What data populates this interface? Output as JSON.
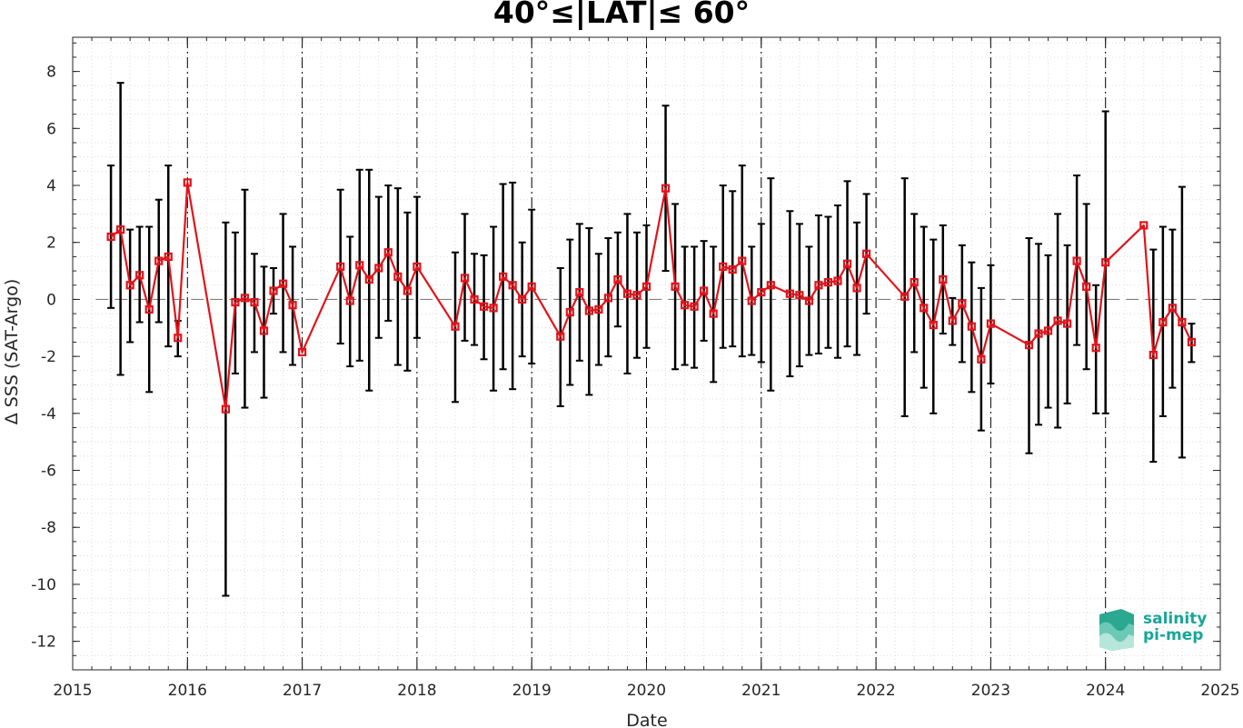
{
  "chart_data": {
    "type": "line",
    "title": "40°≤|LAT|≤ 60°",
    "xlabel": "Date",
    "ylabel": "Δ SSS (SAT-Argo)",
    "xlim": [
      2015,
      2025
    ],
    "ylim": [
      -13,
      9.2
    ],
    "x_ticks": [
      2015,
      2016,
      2017,
      2018,
      2019,
      2020,
      2021,
      2022,
      2023,
      2024,
      2025
    ],
    "x_tick_labels": [
      "2015",
      "2016",
      "2017",
      "2018",
      "2019",
      "2020",
      "2021",
      "2022",
      "2023",
      "2024",
      "2025"
    ],
    "y_ticks": [
      -12,
      -10,
      -8,
      -6,
      -4,
      -2,
      0,
      2,
      4,
      6,
      8
    ],
    "y_tick_labels": [
      "-12",
      "-10",
      "-8",
      "-6",
      "-4",
      "-2",
      "0",
      "2",
      "4",
      "6",
      "8"
    ],
    "grid": "minor dotted",
    "year_lines": [
      2016,
      2017,
      2018,
      2019,
      2020,
      2021,
      2022,
      2023,
      2024
    ],
    "zero_line": 0,
    "colors": {
      "series": "#e0141b",
      "errorbar": "#000000",
      "zero_line": "#7f7f7f"
    },
    "series": [
      {
        "points": [
          {
            "x": "2015-05",
            "y": 2.2,
            "lo": -0.3,
            "hi": 4.7
          },
          {
            "x": "2015-06",
            "y": 2.45,
            "lo": -2.65,
            "hi": 7.6
          },
          {
            "x": "2015-07",
            "y": 0.5,
            "lo": -1.5,
            "hi": 2.45
          },
          {
            "x": "2015-08",
            "y": 0.85,
            "lo": -0.8,
            "hi": 2.55
          },
          {
            "x": "2015-09",
            "y": -0.35,
            "lo": -3.25,
            "hi": 2.55
          },
          {
            "x": "2015-10",
            "y": 1.35,
            "lo": -0.8,
            "hi": 3.5
          },
          {
            "x": "2015-11",
            "y": 1.5,
            "lo": -1.65,
            "hi": 4.7
          },
          {
            "x": "2015-12",
            "y": -1.35,
            "lo": -2.0,
            "hi": -0.75
          },
          {
            "x": "2016-01",
            "y": 4.1,
            "lo": 4.1,
            "hi": 4.1
          },
          {
            "x": "2016-05",
            "y": -3.85,
            "lo": -10.4,
            "hi": 2.7
          },
          {
            "x": "2016-06",
            "y": -0.1,
            "lo": -2.6,
            "hi": 2.35
          },
          {
            "x": "2016-07",
            "y": 0.05,
            "lo": -3.8,
            "hi": 3.85
          },
          {
            "x": "2016-08",
            "y": -0.1,
            "lo": -1.85,
            "hi": 1.6
          },
          {
            "x": "2016-09",
            "y": -1.1,
            "lo": -3.45,
            "hi": 1.15
          },
          {
            "x": "2016-10",
            "y": 0.3,
            "lo": -0.5,
            "hi": 1.1
          },
          {
            "x": "2016-11",
            "y": 0.55,
            "lo": -1.85,
            "hi": 3.0
          },
          {
            "x": "2016-12",
            "y": -0.2,
            "lo": -2.3,
            "hi": 1.85
          },
          {
            "x": "2017-01",
            "y": -1.85,
            "lo": -1.85,
            "hi": -1.85
          },
          {
            "x": "2017-05",
            "y": 1.15,
            "lo": -1.55,
            "hi": 3.85
          },
          {
            "x": "2017-06",
            "y": -0.05,
            "lo": -2.35,
            "hi": 2.2
          },
          {
            "x": "2017-07",
            "y": 1.2,
            "lo": -2.15,
            "hi": 4.55
          },
          {
            "x": "2017-08",
            "y": 0.7,
            "lo": -3.2,
            "hi": 4.55
          },
          {
            "x": "2017-09",
            "y": 1.1,
            "lo": -1.35,
            "hi": 3.6
          },
          {
            "x": "2017-10",
            "y": 1.65,
            "lo": -0.75,
            "hi": 4.0
          },
          {
            "x": "2017-11",
            "y": 0.8,
            "lo": -2.3,
            "hi": 3.9
          },
          {
            "x": "2017-12",
            "y": 0.3,
            "lo": -2.5,
            "hi": 3.05
          },
          {
            "x": "2018-01",
            "y": 1.15,
            "lo": -1.35,
            "hi": 3.6
          },
          {
            "x": "2018-05",
            "y": -0.95,
            "lo": -3.6,
            "hi": 1.65
          },
          {
            "x": "2018-06",
            "y": 0.75,
            "lo": -1.45,
            "hi": 3.0
          },
          {
            "x": "2018-07",
            "y": 0.0,
            "lo": -1.6,
            "hi": 1.6
          },
          {
            "x": "2018-08",
            "y": -0.25,
            "lo": -2.1,
            "hi": 1.55
          },
          {
            "x": "2018-09",
            "y": -0.3,
            "lo": -3.2,
            "hi": 2.55
          },
          {
            "x": "2018-10",
            "y": 0.8,
            "lo": -2.45,
            "hi": 4.05
          },
          {
            "x": "2018-11",
            "y": 0.5,
            "lo": -3.15,
            "hi": 4.1
          },
          {
            "x": "2018-12",
            "y": 0.0,
            "lo": -2.0,
            "hi": 2.0
          },
          {
            "x": "2019-01",
            "y": 0.45,
            "lo": -2.25,
            "hi": 3.15
          },
          {
            "x": "2019-04",
            "y": -1.3,
            "lo": -3.75,
            "hi": 1.1
          },
          {
            "x": "2019-05",
            "y": -0.45,
            "lo": -3.0,
            "hi": 2.1
          },
          {
            "x": "2019-06",
            "y": 0.25,
            "lo": -2.15,
            "hi": 2.65
          },
          {
            "x": "2019-07",
            "y": -0.4,
            "lo": -3.35,
            "hi": 2.5
          },
          {
            "x": "2019-08",
            "y": -0.35,
            "lo": -2.3,
            "hi": 1.6
          },
          {
            "x": "2019-09",
            "y": 0.05,
            "lo": -2.0,
            "hi": 2.15
          },
          {
            "x": "2019-10",
            "y": 0.7,
            "lo": -0.95,
            "hi": 2.35
          },
          {
            "x": "2019-11",
            "y": 0.2,
            "lo": -2.6,
            "hi": 3.0
          },
          {
            "x": "2019-12",
            "y": 0.15,
            "lo": -2.05,
            "hi": 2.35
          },
          {
            "x": "2020-01",
            "y": 0.45,
            "lo": -1.7,
            "hi": 2.6
          },
          {
            "x": "2020-03",
            "y": 3.9,
            "lo": 1.0,
            "hi": 6.8
          },
          {
            "x": "2020-04",
            "y": 0.45,
            "lo": -2.45,
            "hi": 3.35
          },
          {
            "x": "2020-05",
            "y": -0.2,
            "lo": -2.3,
            "hi": 1.85
          },
          {
            "x": "2020-06",
            "y": -0.25,
            "lo": -2.4,
            "hi": 1.85
          },
          {
            "x": "2020-07",
            "y": 0.3,
            "lo": -1.45,
            "hi": 2.05
          },
          {
            "x": "2020-08",
            "y": -0.5,
            "lo": -2.9,
            "hi": 1.85
          },
          {
            "x": "2020-09",
            "y": 1.15,
            "lo": -1.7,
            "hi": 4.0
          },
          {
            "x": "2020-10",
            "y": 1.05,
            "lo": -1.65,
            "hi": 3.8
          },
          {
            "x": "2020-11",
            "y": 1.35,
            "lo": -2.0,
            "hi": 4.7
          },
          {
            "x": "2020-12",
            "y": -0.05,
            "lo": -1.95,
            "hi": 1.85
          },
          {
            "x": "2021-01",
            "y": 0.25,
            "lo": -2.2,
            "hi": 2.65
          },
          {
            "x": "2021-02",
            "y": 0.5,
            "lo": -3.2,
            "hi": 4.25
          },
          {
            "x": "2021-04",
            "y": 0.2,
            "lo": -2.7,
            "hi": 3.1
          },
          {
            "x": "2021-05",
            "y": 0.15,
            "lo": -2.35,
            "hi": 2.65
          },
          {
            "x": "2021-06",
            "y": -0.05,
            "lo": -1.95,
            "hi": 1.85
          },
          {
            "x": "2021-07",
            "y": 0.5,
            "lo": -1.9,
            "hi": 2.95
          },
          {
            "x": "2021-08",
            "y": 0.6,
            "lo": -1.7,
            "hi": 2.9
          },
          {
            "x": "2021-09",
            "y": 0.65,
            "lo": -2.05,
            "hi": 3.3
          },
          {
            "x": "2021-10",
            "y": 1.25,
            "lo": -1.65,
            "hi": 4.15
          },
          {
            "x": "2021-11",
            "y": 0.4,
            "lo": -1.95,
            "hi": 2.7
          },
          {
            "x": "2021-12",
            "y": 1.6,
            "lo": -0.5,
            "hi": 3.7
          },
          {
            "x": "2022-04",
            "y": 0.1,
            "lo": -4.1,
            "hi": 4.25
          },
          {
            "x": "2022-05",
            "y": 0.6,
            "lo": -1.85,
            "hi": 3.0
          },
          {
            "x": "2022-06",
            "y": -0.3,
            "lo": -3.1,
            "hi": 2.55
          },
          {
            "x": "2022-07",
            "y": -0.9,
            "lo": -4.0,
            "hi": 2.1
          },
          {
            "x": "2022-08",
            "y": 0.7,
            "lo": -1.2,
            "hi": 2.6
          },
          {
            "x": "2022-09",
            "y": -0.75,
            "lo": -1.6,
            "hi": 0.05
          },
          {
            "x": "2022-10",
            "y": -0.15,
            "lo": -2.2,
            "hi": 1.9
          },
          {
            "x": "2022-11",
            "y": -0.95,
            "lo": -3.25,
            "hi": 1.3
          },
          {
            "x": "2022-12",
            "y": -2.1,
            "lo": -4.6,
            "hi": 0.4
          },
          {
            "x": "2023-01",
            "y": -0.85,
            "lo": -2.95,
            "hi": 1.2
          },
          {
            "x": "2023-05",
            "y": -1.6,
            "lo": -5.4,
            "hi": 2.15
          },
          {
            "x": "2023-06",
            "y": -1.2,
            "lo": -4.4,
            "hi": 1.95
          },
          {
            "x": "2023-07",
            "y": -1.1,
            "lo": -3.8,
            "hi": 1.55
          },
          {
            "x": "2023-08",
            "y": -0.75,
            "lo": -4.5,
            "hi": 3.0
          },
          {
            "x": "2023-09",
            "y": -0.85,
            "lo": -3.65,
            "hi": 1.9
          },
          {
            "x": "2023-10",
            "y": 1.35,
            "lo": -1.6,
            "hi": 4.35
          },
          {
            "x": "2023-11",
            "y": 0.45,
            "lo": -2.45,
            "hi": 3.35
          },
          {
            "x": "2023-12",
            "y": -1.7,
            "lo": -4.0,
            "hi": 0.5
          },
          {
            "x": "2024-01",
            "y": 1.3,
            "lo": -4.0,
            "hi": 6.6
          },
          {
            "x": "2024-05",
            "y": 2.6,
            "lo": 2.6,
            "hi": 2.6
          },
          {
            "x": "2024-06",
            "y": -1.95,
            "lo": -5.7,
            "hi": 1.75
          },
          {
            "x": "2024-07",
            "y": -0.8,
            "lo": -4.1,
            "hi": 2.55
          },
          {
            "x": "2024-08",
            "y": -0.3,
            "lo": -3.1,
            "hi": 2.45
          },
          {
            "x": "2024-09",
            "y": -0.8,
            "lo": -5.55,
            "hi": 3.95
          },
          {
            "x": "2024-10",
            "y": -1.5,
            "lo": -2.2,
            "hi": -0.85
          }
        ]
      }
    ]
  },
  "logo": {
    "line1": "salinity",
    "line2": "pi-mep"
  }
}
